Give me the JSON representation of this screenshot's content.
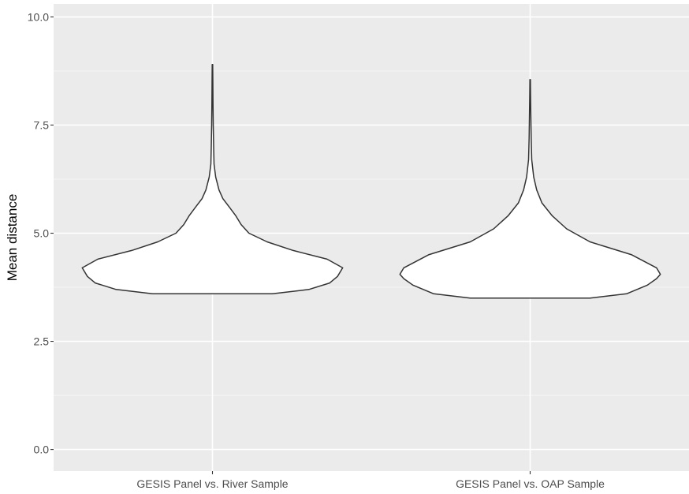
{
  "chart_data": {
    "type": "violin",
    "title": "",
    "xlabel": "",
    "ylabel": "Mean distance",
    "ylim": [
      -0.5,
      10.3
    ],
    "yticks": [
      0.0,
      2.5,
      5.0,
      7.5,
      10.0
    ],
    "ytick_labels": [
      "0.0",
      "2.5",
      "5.0",
      "7.5",
      "10.0"
    ],
    "grid": true,
    "categories": [
      "GESIS Panel vs. River Sample",
      "GESIS Panel vs. OAP Sample"
    ],
    "series": [
      {
        "category": "GESIS Panel vs. River Sample",
        "min": 3.6,
        "max": 8.9,
        "profile": [
          [
            3.6,
            0.46
          ],
          [
            3.7,
            0.74
          ],
          [
            3.85,
            0.9
          ],
          [
            4.0,
            0.96
          ],
          [
            4.2,
            1.0
          ],
          [
            4.4,
            0.88
          ],
          [
            4.6,
            0.62
          ],
          [
            4.8,
            0.42
          ],
          [
            5.0,
            0.28
          ],
          [
            5.2,
            0.22
          ],
          [
            5.4,
            0.18
          ],
          [
            5.6,
            0.13
          ],
          [
            5.8,
            0.08
          ],
          [
            6.0,
            0.05
          ],
          [
            6.3,
            0.025
          ],
          [
            6.6,
            0.012
          ],
          [
            7.0,
            0.009
          ],
          [
            7.5,
            0.006
          ],
          [
            8.0,
            0.004
          ],
          [
            8.5,
            0.003
          ],
          [
            8.9,
            0.002
          ]
        ]
      },
      {
        "category": "GESIS Panel vs. OAP Sample",
        "min": 3.5,
        "max": 8.55,
        "profile": [
          [
            3.5,
            0.46
          ],
          [
            3.6,
            0.74
          ],
          [
            3.8,
            0.9
          ],
          [
            3.95,
            0.97
          ],
          [
            4.05,
            1.0
          ],
          [
            4.2,
            0.97
          ],
          [
            4.5,
            0.78
          ],
          [
            4.8,
            0.46
          ],
          [
            5.1,
            0.28
          ],
          [
            5.4,
            0.17
          ],
          [
            5.7,
            0.09
          ],
          [
            6.0,
            0.05
          ],
          [
            6.3,
            0.027
          ],
          [
            6.7,
            0.012
          ],
          [
            7.2,
            0.008
          ],
          [
            7.8,
            0.005
          ],
          [
            8.2,
            0.003
          ],
          [
            8.55,
            0.002
          ]
        ]
      }
    ]
  }
}
